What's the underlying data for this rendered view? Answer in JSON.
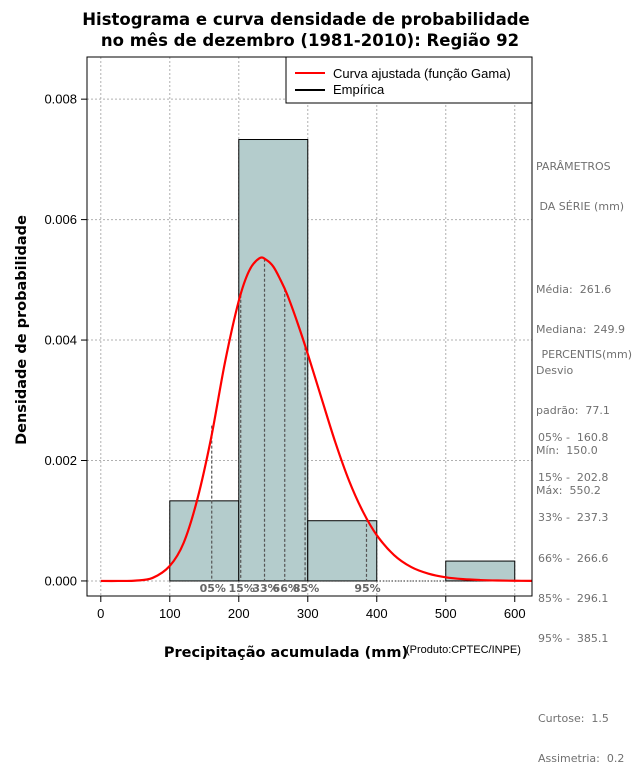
{
  "chart_data": {
    "type": "histogram",
    "title_line1": "Histograma e curva densidade de probabilidade",
    "title_line2": "no mês de dezembro (1981-2010): Região 92",
    "xlabel": "Precipitação acumulada (mm)",
    "ylabel": "Densidade de probabilidade",
    "credit": "(Produto:CPTEC/INPE)",
    "xlim": [
      -20,
      625
    ],
    "ylim": [
      -0.00025,
      0.0087
    ],
    "x_ticks": [
      0,
      100,
      200,
      300,
      400,
      500,
      600
    ],
    "y_ticks": [
      0.0,
      0.002,
      0.004,
      0.006,
      0.008
    ],
    "y_tick_labels": [
      "0.000",
      "0.002",
      "0.004",
      "0.006",
      "0.008"
    ],
    "grid": true,
    "bins": [
      {
        "x0": 100,
        "x1": 200,
        "density": 0.00133
      },
      {
        "x0": 200,
        "x1": 300,
        "density": 0.00733
      },
      {
        "x0": 300,
        "x1": 400,
        "density": 0.001
      },
      {
        "x0": 400,
        "x1": 500,
        "density": 0.0
      },
      {
        "x0": 500,
        "x1": 600,
        "density": 0.00033
      }
    ],
    "gamma_curve": {
      "x": [
        0,
        25,
        50,
        75,
        100,
        120,
        140,
        160,
        180,
        200,
        215,
        230,
        240,
        250,
        260,
        270,
        285,
        300,
        320,
        340,
        360,
        380,
        400,
        425,
        450,
        475,
        500,
        525,
        550,
        575,
        600,
        625
      ],
      "y": [
        0.0,
        0.0,
        5e-06,
        5e-05,
        0.00025,
        0.00063,
        0.00136,
        0.00238,
        0.00363,
        0.00465,
        0.00515,
        0.00536,
        0.00533,
        0.00522,
        0.00501,
        0.00476,
        0.00429,
        0.00377,
        0.00303,
        0.0023,
        0.00166,
        0.00115,
        0.00076,
        0.00043,
        0.00023,
        0.00012,
        6e-05,
        3e-05,
        1.5e-05,
        7e-06,
        3e-06,
        1e-06
      ]
    },
    "percentile_lines": [
      {
        "label": "05%",
        "x": 160.8,
        "y": 0.00258
      },
      {
        "label": "15%",
        "x": 202.8,
        "y": 0.00475
      },
      {
        "label": "33%",
        "x": 237.3,
        "y": 0.00535
      },
      {
        "label": "66%",
        "x": 266.6,
        "y": 0.00485
      },
      {
        "label": "85%",
        "x": 296.1,
        "y": 0.00388
      },
      {
        "label": "95%",
        "x": 385.1,
        "y": 0.00103
      }
    ],
    "legend": {
      "position": "top-right",
      "entries": [
        {
          "label": "Curva ajustada (função Gama)",
          "color": "#ff0000"
        },
        {
          "label": "Empírica",
          "color": "#000000"
        }
      ]
    },
    "colors": {
      "bar_fill": "#b4cccc",
      "curve": "#ff0000",
      "grid": "#b0b0b0",
      "pct_line": "#555555"
    }
  },
  "stats": {
    "header1": "PARÂMETROS",
    "header2": " DA SÉRIE (mm)",
    "media": "Média:  261.6",
    "mediana": "Mediana:  249.9",
    "desvio1": "Desvio",
    "desvio2": "padrão:  77.1",
    "min": "Mín:  150.0",
    "max": "Máx:  550.2"
  },
  "percentis": {
    "header": " PERCENTIS(mm)",
    "p05": "05% -  160.8",
    "p15": "15% -  202.8",
    "p33": "33% -  237.3",
    "p66": "66% -  266.6",
    "p85": "85% -  296.1",
    "p95": "95% -  385.1",
    "curtose": "Curtose:  1.5",
    "assimetria": "Assimetria:  0.2"
  }
}
